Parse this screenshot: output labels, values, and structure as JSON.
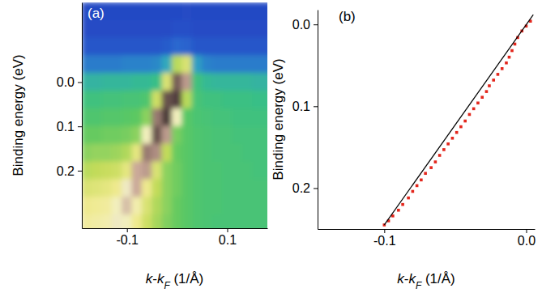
{
  "chart_data": [
    {
      "type": "heatmap",
      "title": "(a)",
      "x_label": "k-kF (1/Å)",
      "y_label": "Binding energy (eV)",
      "xlim": [
        -0.19,
        0.18
      ],
      "ylim": [
        0.33,
        -0.18
      ],
      "xticks": [
        -0.1,
        0.1
      ],
      "yticks": [
        {
          "value": 0,
          "label": "0.0"
        },
        0.1,
        0.2
      ],
      "x": [
        -0.18,
        -0.16,
        -0.14,
        -0.12,
        -0.1,
        -0.08,
        -0.06,
        -0.04,
        -0.02,
        0,
        0.02,
        0.04,
        0.06,
        0.08,
        0.1,
        0.12,
        0.14,
        0.16,
        0.18
      ],
      "y": [
        -0.16,
        -0.12,
        -0.08,
        -0.04,
        0,
        0.04,
        0.08,
        0.12,
        0.16,
        0.2,
        0.24,
        0.28,
        0.32
      ],
      "cells": [
        [
          8,
          8,
          8,
          8,
          8,
          8,
          8,
          8,
          8,
          8,
          9,
          8,
          8,
          8,
          8,
          8,
          8,
          8,
          8
        ],
        [
          9,
          9,
          9,
          9,
          9,
          9,
          9,
          9,
          9,
          10,
          10,
          9,
          9,
          9,
          9,
          9,
          9,
          9,
          9
        ],
        [
          12,
          12,
          12,
          12,
          12,
          12,
          12,
          12,
          13,
          16,
          15,
          12,
          12,
          12,
          12,
          12,
          12,
          12,
          12
        ],
        [
          20,
          20,
          20,
          20,
          21,
          21,
          21,
          22,
          28,
          55,
          60,
          26,
          21,
          20,
          20,
          20,
          20,
          20,
          20
        ],
        [
          32,
          32,
          33,
          33,
          33,
          34,
          34,
          36,
          60,
          90,
          80,
          38,
          34,
          33,
          33,
          33,
          33,
          32,
          32
        ],
        [
          38,
          38,
          39,
          39,
          40,
          40,
          42,
          58,
          92,
          95,
          55,
          40,
          38,
          38,
          37,
          37,
          37,
          36,
          36
        ],
        [
          42,
          42,
          43,
          43,
          44,
          45,
          50,
          85,
          96,
          70,
          44,
          41,
          40,
          39,
          39,
          38,
          38,
          38,
          38
        ],
        [
          46,
          46,
          47,
          47,
          48,
          50,
          70,
          92,
          80,
          48,
          44,
          42,
          41,
          40,
          40,
          39,
          39,
          39,
          39
        ],
        [
          50,
          51,
          51,
          52,
          54,
          62,
          85,
          82,
          56,
          46,
          44,
          42,
          41,
          40,
          40,
          40,
          39,
          39,
          39
        ],
        [
          55,
          56,
          57,
          58,
          62,
          78,
          80,
          60,
          50,
          47,
          44,
          42,
          41,
          41,
          40,
          40,
          40,
          39,
          39
        ],
        [
          60,
          61,
          62,
          64,
          72,
          78,
          64,
          56,
          50,
          47,
          44,
          42,
          41,
          41,
          40,
          40,
          40,
          40,
          40
        ],
        [
          64,
          65,
          66,
          70,
          76,
          68,
          60,
          54,
          50,
          46,
          44,
          42,
          41,
          41,
          40,
          40,
          40,
          40,
          40
        ],
        [
          66,
          67,
          68,
          72,
          70,
          64,
          58,
          53,
          49,
          46,
          44,
          42,
          41,
          40,
          40,
          40,
          40,
          40,
          40
        ]
      ]
    },
    {
      "type": "scatter",
      "title": "(b)",
      "x_label": "k-kF (1/Å)",
      "y_label": "Binding energy (eV)",
      "xlim": [
        -0.147,
        0.006
      ],
      "ylim": [
        0.25,
        -0.018
      ],
      "xticks": [
        -0.1,
        {
          "value": 0,
          "label": "0.0"
        }
      ],
      "yticks": [
        {
          "value": 0,
          "label": "0.0"
        },
        0.1,
        0.2
      ],
      "series": [
        {
          "type": "scatter",
          "color": "#e3261c",
          "marker": "square",
          "x": [
            0.003,
            0.0,
            -0.003,
            -0.006,
            -0.008,
            -0.01,
            -0.012,
            -0.014,
            -0.017,
            -0.02,
            -0.023,
            -0.026,
            -0.028,
            -0.031,
            -0.034,
            -0.037,
            -0.04,
            -0.043,
            -0.046,
            -0.049,
            -0.052,
            -0.055,
            -0.058,
            -0.061,
            -0.064,
            -0.067,
            -0.071,
            -0.074,
            -0.077,
            -0.08,
            -0.083,
            -0.087,
            -0.09,
            -0.094,
            -0.097,
            -0.1
          ],
          "values": [
            -0.004,
            0.002,
            0.008,
            0.016,
            0.024,
            0.032,
            0.04,
            0.047,
            0.054,
            0.061,
            0.068,
            0.075,
            0.082,
            0.089,
            0.096,
            0.103,
            0.11,
            0.118,
            0.125,
            0.132,
            0.139,
            0.146,
            0.153,
            0.16,
            0.168,
            0.175,
            0.182,
            0.19,
            0.197,
            0.204,
            0.212,
            0.22,
            0.227,
            0.234,
            0.24,
            0.245
          ]
        },
        {
          "type": "line",
          "color": "#000000",
          "line_style": "solid",
          "x": [
            -0.1,
            0.005
          ],
          "values": [
            0.245,
            -0.012
          ]
        }
      ]
    }
  ]
}
